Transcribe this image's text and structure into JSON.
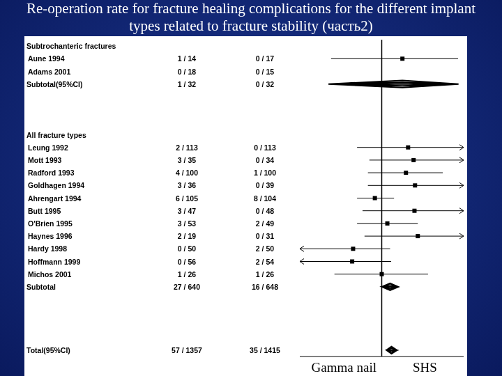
{
  "chart_data": {
    "type": "forest",
    "title": "Re-operation rate for fracture healing complications for the different implant types related to fracture stability (часть2)",
    "log": "x",
    "xlim": [
      0.01,
      100
    ],
    "tick_labels": false,
    "reference": 1,
    "color": "#000000",
    "marker": "square",
    "x_labels": [
      "Gamma nail",
      "SHS"
    ],
    "groups": [
      {
        "name": "Subtrochanteric fractures",
        "studies": [
          {
            "name": "Aune 1994",
            "gamma_nail": "1 / 14",
            "shs": "0 / 17",
            "estimate": 3.2,
            "ci_low": 0.058,
            "ci_high": 73
          },
          {
            "name": "Adams 2001",
            "gamma_nail": "0 / 18",
            "shs": "0 / 15",
            "estimate": null,
            "ci_low": null,
            "ci_high": null
          }
        ],
        "subtotal": {
          "name": "Subtotal(95%CI)",
          "gamma_nail": "1 / 32",
          "shs": "0 / 32",
          "estimate": 3.2,
          "ci_low": 0.05,
          "ci_high": 75,
          "marker": "diamond"
        }
      },
      {
        "name": "All fracture types",
        "studies": [
          {
            "name": "Leung 1992",
            "gamma_nail": "2 / 113",
            "shs": "0 / 113",
            "estimate": 4.4,
            "ci_low": 0.25,
            "ci_high": 300
          },
          {
            "name": "Mott 1993",
            "gamma_nail": "3 / 35",
            "shs": "0 / 34",
            "estimate": 6.0,
            "ci_low": 0.5,
            "ci_high": 400
          },
          {
            "name": "Radford 1993",
            "gamma_nail": "4 / 100",
            "shs": "1 / 100",
            "estimate": 3.9,
            "ci_low": 0.46,
            "ci_high": 31
          },
          {
            "name": "Goldhagen 1994",
            "gamma_nail": "3 / 36",
            "shs": "0 / 39",
            "estimate": 6.5,
            "ci_low": 0.46,
            "ci_high": 300
          },
          {
            "name": "Ahrengart 1994",
            "gamma_nail": "6 / 105",
            "shs": "8 / 104",
            "estimate": 0.68,
            "ci_low": 0.25,
            "ci_high": 2.0
          },
          {
            "name": "Butt 1995",
            "gamma_nail": "3 / 47",
            "shs": "0 / 48",
            "estimate": 6.3,
            "ci_low": 0.34,
            "ci_high": 300
          },
          {
            "name": "O'Brien 1995",
            "gamma_nail": "3 / 53",
            "shs": "2 / 49",
            "estimate": 1.37,
            "ci_low": 0.25,
            "ci_high": 7.6
          },
          {
            "name": "Haynes 1996",
            "gamma_nail": "2 / 19",
            "shs": "0 / 31",
            "estimate": 7.6,
            "ci_low": 0.38,
            "ci_high": 200
          },
          {
            "name": "Hardy 1998",
            "gamma_nail": "0 / 50",
            "shs": "2 / 50",
            "estimate": 0.2,
            "ci_low": 0.004,
            "ci_high": 1.6
          },
          {
            "name": "Hoffmann 1999",
            "gamma_nail": "0 / 56",
            "shs": "2 / 54",
            "estimate": 0.19,
            "ci_low": 0.004,
            "ci_high": 1.7
          },
          {
            "name": "Michos 2001",
            "gamma_nail": "1 / 26",
            "shs": "1 / 26",
            "estimate": 1.0,
            "ci_low": 0.07,
            "ci_high": 13.5
          }
        ],
        "subtotal": {
          "name": "Subtotal",
          "gamma_nail": "27 / 640",
          "shs": "16 / 648",
          "estimate": 1.6,
          "ci_low": 1.0,
          "ci_high": 2.55,
          "marker": "diamond"
        }
      }
    ],
    "total": {
      "name": "Total(95%CI)",
      "gamma_nail": "57 / 1357",
      "shs": "35 / 1415",
      "estimate": 1.73,
      "ci_low": 1.3,
      "ci_high": 2.36,
      "marker": "diamond"
    }
  }
}
